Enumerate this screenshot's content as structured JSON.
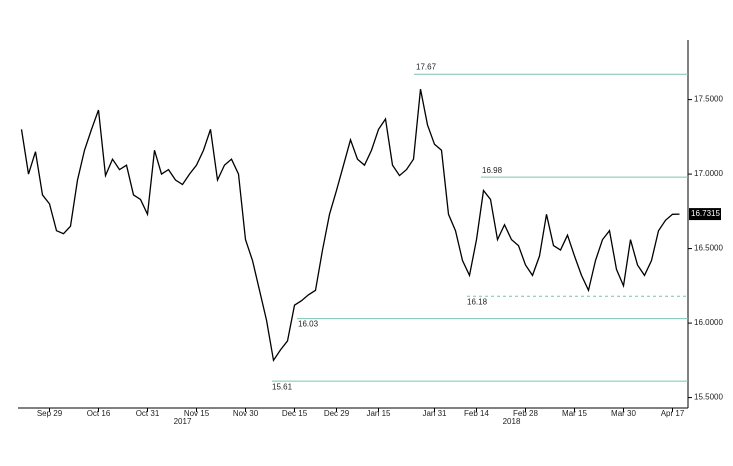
{
  "chart_data": {
    "type": "line",
    "categories": [
      null,
      null,
      null,
      null,
      "Sep 29",
      null,
      null,
      null,
      null,
      null,
      null,
      "Oct 16",
      null,
      null,
      null,
      null,
      null,
      null,
      "Oct 31",
      null,
      null,
      null,
      null,
      null,
      null,
      "Nov 15",
      null,
      null,
      null,
      null,
      null,
      null,
      "Nov 30",
      null,
      null,
      null,
      null,
      null,
      null,
      "Dec 15",
      null,
      null,
      null,
      null,
      null,
      "Dec 29",
      null,
      null,
      null,
      null,
      null,
      "Jan 15",
      null,
      null,
      null,
      null,
      null,
      null,
      null,
      "Jan 31",
      null,
      null,
      null,
      null,
      null,
      "Feb 14",
      null,
      null,
      null,
      null,
      null,
      null,
      "Feb 28",
      null,
      null,
      null,
      null,
      null,
      null,
      "Mar 15",
      null,
      null,
      null,
      null,
      null,
      null,
      "Mar 30",
      null,
      null,
      null,
      null,
      null,
      null,
      "Apr 17",
      null
    ],
    "year_labels": [
      "2017",
      "2018"
    ],
    "series": [
      {
        "color": "#000000",
        "values": [
          17.3,
          17.0,
          17.15,
          16.86,
          16.8,
          16.62,
          16.6,
          16.65,
          16.96,
          17.16,
          17.3,
          17.43,
          16.99,
          17.1,
          17.03,
          17.06,
          16.86,
          16.83,
          16.73,
          17.16,
          17.0,
          17.03,
          16.96,
          16.93,
          17.0,
          17.06,
          17.16,
          17.3,
          16.96,
          17.06,
          17.1,
          17.0,
          16.56,
          16.42,
          16.22,
          16.02,
          15.75,
          15.82,
          15.88,
          16.12,
          16.15,
          16.19,
          16.22,
          16.49,
          16.73,
          16.89,
          17.06,
          17.23,
          17.1,
          17.06,
          17.16,
          17.3,
          17.37,
          17.06,
          16.99,
          17.03,
          17.1,
          17.57,
          17.33,
          17.2,
          17.16,
          16.73,
          16.62,
          16.42,
          16.32,
          16.56,
          16.89,
          16.83,
          16.56,
          16.66,
          16.56,
          16.52,
          16.39,
          16.32,
          16.45,
          16.73,
          16.52,
          16.49,
          16.59,
          16.45,
          16.32,
          16.22,
          16.42,
          16.56,
          16.62,
          16.36,
          16.25,
          16.56,
          16.39,
          16.32,
          16.42,
          16.62,
          16.69,
          16.73,
          16.7315
        ]
      }
    ],
    "levels": [
      {
        "value": 17.67,
        "dashed": false
      },
      {
        "value": 16.98,
        "dashed": false
      },
      {
        "value": 16.18,
        "dashed": true
      },
      {
        "value": 16.03,
        "dashed": false
      },
      {
        "value": 15.61,
        "dashed": false
      }
    ],
    "level_color": "#7cc4b4",
    "last_price": 16.7315,
    "ylim": [
      15.43,
      17.9
    ],
    "yticks": [
      {
        "value": 15.5,
        "label": "15.5000"
      },
      {
        "value": 16.0,
        "label": "16.0000"
      },
      {
        "value": 16.5,
        "label": "16.5000"
      },
      {
        "value": 17.0,
        "label": "17.0000"
      },
      {
        "value": 17.5,
        "label": "17.5000"
      }
    ]
  }
}
